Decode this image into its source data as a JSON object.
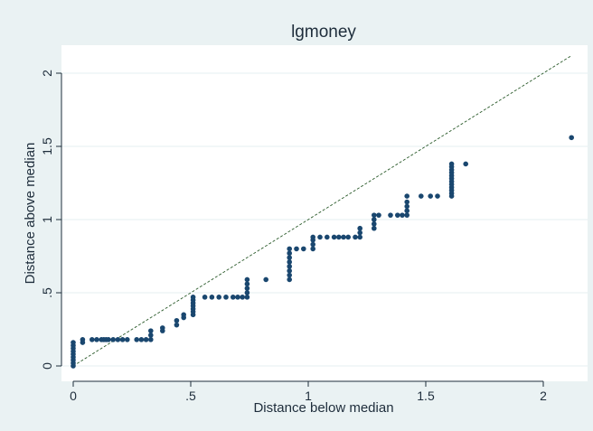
{
  "chart_data": {
    "type": "scatter",
    "title": "lgmoney",
    "xlabel": "Distance below median",
    "ylabel": "Distance above median",
    "xlim": [
      0,
      2.12
    ],
    "ylim": [
      0,
      2.12
    ],
    "xticks": [
      "0",
      ".5",
      "1",
      "1.5",
      "2"
    ],
    "yticks": [
      "0",
      ".5",
      "1",
      "1.5",
      "2"
    ],
    "grid": true,
    "reference_line": {
      "from": [
        0,
        0
      ],
      "to": [
        2.12,
        2.12
      ],
      "style": "diagonal"
    },
    "colors": {
      "marker": "#1a476f",
      "line": "#2a5a2a",
      "grid": "#eaf2f3",
      "plot_bg": "#ffffff",
      "outer_bg": "#eaf2f3",
      "text": "#1e2d3b"
    },
    "points": [
      [
        0.0,
        0.0
      ],
      [
        0.0,
        0.02
      ],
      [
        0.0,
        0.04
      ],
      [
        0.0,
        0.06
      ],
      [
        0.0,
        0.08
      ],
      [
        0.0,
        0.1
      ],
      [
        0.0,
        0.12
      ],
      [
        0.0,
        0.14
      ],
      [
        0.0,
        0.16
      ],
      [
        0.04,
        0.16
      ],
      [
        0.04,
        0.18
      ],
      [
        0.08,
        0.18
      ],
      [
        0.1,
        0.18
      ],
      [
        0.12,
        0.18
      ],
      [
        0.13,
        0.18
      ],
      [
        0.14,
        0.18
      ],
      [
        0.15,
        0.18
      ],
      [
        0.17,
        0.18
      ],
      [
        0.19,
        0.18
      ],
      [
        0.21,
        0.18
      ],
      [
        0.23,
        0.18
      ],
      [
        0.27,
        0.18
      ],
      [
        0.29,
        0.18
      ],
      [
        0.31,
        0.18
      ],
      [
        0.33,
        0.18
      ],
      [
        0.33,
        0.21
      ],
      [
        0.33,
        0.24
      ],
      [
        0.38,
        0.24
      ],
      [
        0.38,
        0.26
      ],
      [
        0.44,
        0.28
      ],
      [
        0.44,
        0.31
      ],
      [
        0.47,
        0.33
      ],
      [
        0.47,
        0.35
      ],
      [
        0.51,
        0.35
      ],
      [
        0.51,
        0.37
      ],
      [
        0.51,
        0.39
      ],
      [
        0.51,
        0.41
      ],
      [
        0.51,
        0.43
      ],
      [
        0.51,
        0.45
      ],
      [
        0.51,
        0.47
      ],
      [
        0.56,
        0.47
      ],
      [
        0.59,
        0.47
      ],
      [
        0.62,
        0.47
      ],
      [
        0.65,
        0.47
      ],
      [
        0.68,
        0.47
      ],
      [
        0.7,
        0.47
      ],
      [
        0.72,
        0.47
      ],
      [
        0.74,
        0.47
      ],
      [
        0.74,
        0.5
      ],
      [
        0.74,
        0.53
      ],
      [
        0.74,
        0.56
      ],
      [
        0.74,
        0.59
      ],
      [
        0.82,
        0.59
      ],
      [
        0.92,
        0.59
      ],
      [
        0.92,
        0.62
      ],
      [
        0.92,
        0.65
      ],
      [
        0.92,
        0.68
      ],
      [
        0.92,
        0.71
      ],
      [
        0.92,
        0.74
      ],
      [
        0.92,
        0.77
      ],
      [
        0.92,
        0.8
      ],
      [
        0.95,
        0.8
      ],
      [
        0.98,
        0.8
      ],
      [
        1.02,
        0.8
      ],
      [
        1.02,
        0.83
      ],
      [
        1.02,
        0.86
      ],
      [
        1.02,
        0.88
      ],
      [
        1.05,
        0.88
      ],
      [
        1.08,
        0.88
      ],
      [
        1.11,
        0.88
      ],
      [
        1.13,
        0.88
      ],
      [
        1.15,
        0.88
      ],
      [
        1.17,
        0.88
      ],
      [
        1.2,
        0.88
      ],
      [
        1.22,
        0.88
      ],
      [
        1.22,
        0.91
      ],
      [
        1.22,
        0.94
      ],
      [
        1.28,
        0.94
      ],
      [
        1.28,
        0.97
      ],
      [
        1.28,
        1.0
      ],
      [
        1.28,
        1.03
      ],
      [
        1.3,
        1.03
      ],
      [
        1.35,
        1.03
      ],
      [
        1.38,
        1.03
      ],
      [
        1.4,
        1.03
      ],
      [
        1.42,
        1.03
      ],
      [
        1.42,
        1.06
      ],
      [
        1.42,
        1.09
      ],
      [
        1.42,
        1.12
      ],
      [
        1.42,
        1.16
      ],
      [
        1.48,
        1.16
      ],
      [
        1.52,
        1.16
      ],
      [
        1.55,
        1.16
      ],
      [
        1.61,
        1.16
      ],
      [
        1.61,
        1.18
      ],
      [
        1.61,
        1.2
      ],
      [
        1.61,
        1.22
      ],
      [
        1.61,
        1.24
      ],
      [
        1.61,
        1.26
      ],
      [
        1.61,
        1.28
      ],
      [
        1.61,
        1.3
      ],
      [
        1.61,
        1.32
      ],
      [
        1.61,
        1.34
      ],
      [
        1.61,
        1.36
      ],
      [
        1.61,
        1.38
      ],
      [
        1.67,
        1.38
      ],
      [
        2.12,
        1.56
      ]
    ]
  }
}
